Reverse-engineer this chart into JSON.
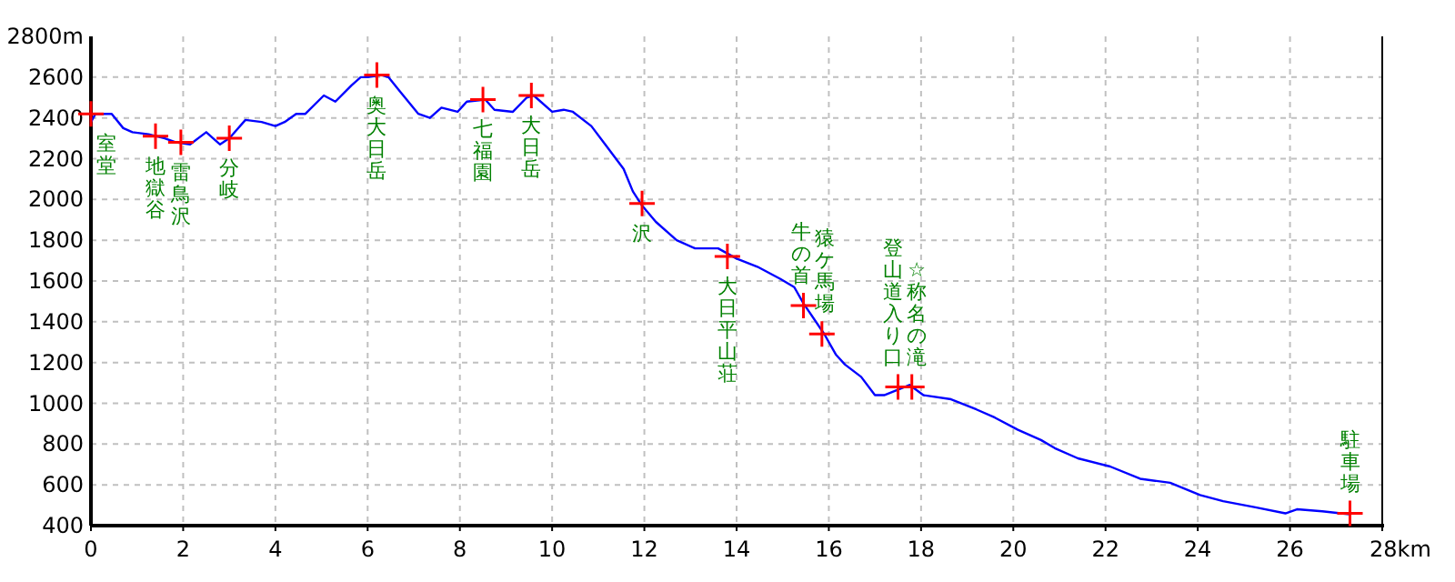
{
  "chart_data": {
    "type": "line",
    "xlim": [
      0,
      28
    ],
    "ylim": [
      400,
      2800
    ],
    "xticks": [
      0,
      2,
      4,
      6,
      8,
      10,
      12,
      14,
      16,
      18,
      20,
      22,
      24,
      26,
      {
        "value": 28,
        "label": "28km"
      }
    ],
    "yticks": [
      400,
      600,
      800,
      1000,
      1200,
      1400,
      1600,
      1800,
      2000,
      2200,
      2400,
      2600,
      {
        "value": 2800,
        "label": "2800m"
      }
    ],
    "grid": true,
    "series": [
      {
        "color": "#0000ff",
        "marker": "none",
        "x": [
          0,
          0.1,
          0.45,
          0.7,
          0.9,
          1.25,
          1.6,
          1.85,
          2.15,
          2.5,
          2.8,
          3.0,
          3.35,
          3.7,
          4.0,
          4.2,
          4.45,
          4.65,
          5.05,
          5.3,
          5.65,
          5.85,
          6.0,
          6.3,
          6.45,
          6.7,
          7.1,
          7.35,
          7.6,
          7.95,
          8.15,
          8.55,
          8.75,
          9.15,
          9.45,
          9.6,
          10.0,
          10.25,
          10.45,
          10.85,
          11.15,
          11.55,
          11.75,
          11.95,
          12.25,
          12.7,
          13.1,
          13.6,
          14.0,
          14.45,
          14.95,
          15.25,
          15.45,
          15.9,
          16.15,
          16.35,
          16.7,
          17.0,
          17.2,
          17.75,
          18.05,
          18.65,
          19.2,
          19.6,
          20.1,
          20.6,
          20.9,
          21.4,
          22.1,
          22.75,
          23.4,
          24.05,
          24.55,
          25.25,
          25.9,
          26.15,
          26.7,
          27.1,
          27.3
        ],
        "values": [
          2380,
          2420,
          2420,
          2350,
          2330,
          2320,
          2300,
          2280,
          2270,
          2330,
          2270,
          2300,
          2390,
          2380,
          2360,
          2380,
          2420,
          2420,
          2510,
          2480,
          2560,
          2600,
          2600,
          2610,
          2600,
          2530,
          2420,
          2400,
          2450,
          2430,
          2480,
          2490,
          2440,
          2430,
          2500,
          2510,
          2430,
          2440,
          2430,
          2360,
          2270,
          2150,
          2040,
          1970,
          1890,
          1800,
          1760,
          1760,
          1710,
          1670,
          1610,
          1570,
          1490,
          1340,
          1240,
          1190,
          1130,
          1040,
          1040,
          1090,
          1040,
          1020,
          970,
          930,
          870,
          820,
          780,
          730,
          690,
          630,
          610,
          550,
          520,
          490,
          460,
          480,
          470,
          460,
          455
        ]
      },
      {
        "type": "scatter",
        "color": "#ff0000",
        "marker": "cross",
        "x": [
          0,
          1.4,
          1.95,
          3.0,
          6.2,
          8.5,
          9.55,
          11.95,
          13.8,
          15.45,
          15.85,
          17.5,
          17.8,
          27.3
        ],
        "values": [
          2420,
          2310,
          2280,
          2300,
          2610,
          2490,
          2510,
          1980,
          1720,
          1480,
          1340,
          1080,
          1080,
          460
        ]
      }
    ],
    "annotations": [
      {
        "text": "室堂",
        "x": 0,
        "y": 2420
      },
      {
        "text": "地獄谷",
        "x": 1.4,
        "y": 2310
      },
      {
        "text": "雷鳥沢",
        "x": 1.95,
        "y": 2280
      },
      {
        "text": "分岐",
        "x": 3.0,
        "y": 2300
      },
      {
        "text": "奥大日岳",
        "x": 6.2,
        "y": 2610
      },
      {
        "text": "七福園",
        "x": 8.5,
        "y": 2490
      },
      {
        "text": "大日岳",
        "x": 9.55,
        "y": 2510
      },
      {
        "text": "沢",
        "x": 11.95,
        "y": 1980
      },
      {
        "text": "大日平山荘",
        "x": 13.8,
        "y": 1720
      },
      {
        "text": "牛の首",
        "x": 15.45,
        "y": 1480
      },
      {
        "text": "猿ケ馬場",
        "x": 15.85,
        "y": 1340
      },
      {
        "text": "登山道入り口",
        "x": 17.5,
        "y": 1080
      },
      {
        "text": "☆称名の滝",
        "x": 17.8,
        "y": 1080
      },
      {
        "text": "駐車場",
        "x": 27.3,
        "y": 460
      }
    ]
  }
}
